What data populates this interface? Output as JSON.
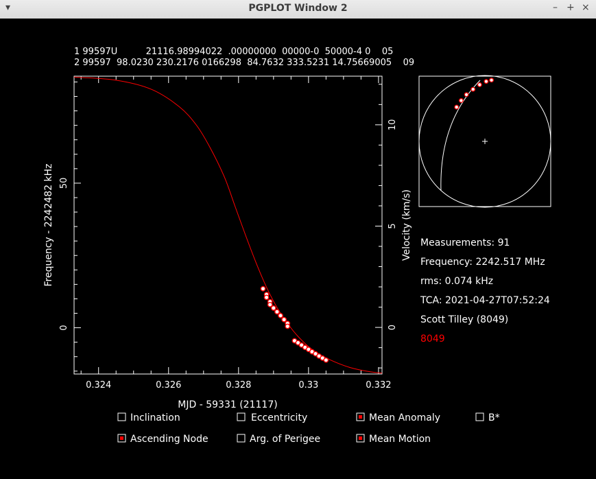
{
  "window": {
    "title": "PGPLOT Window 2",
    "menu_icon": "▾",
    "minimize": "–",
    "maximize": "+",
    "close": "×"
  },
  "tle": {
    "line1": "1 99597U          21116.98994022  .00000000  00000-0  50000-4 0    05",
    "line2": "2 99597  98.0230 230.2176 0166298  84.7632 333.5231 14.75669005    09"
  },
  "info": {
    "measurements": "Measurements: 91",
    "frequency": "Frequency: 2242.517 MHz",
    "rms": "rms: 0.074 kHz",
    "tca": "TCA: 2021-04-27T07:52:24",
    "observer": "Scott Tilley (8049)",
    "site": "8049"
  },
  "checkboxes": [
    {
      "label": "Inclination",
      "checked": false
    },
    {
      "label": "Eccentricity",
      "checked": false
    },
    {
      "label": "Mean Anomaly",
      "checked": true
    },
    {
      "label": "B*",
      "checked": false
    },
    {
      "label": "Ascending Node",
      "checked": true
    },
    {
      "label": "Arg. of Perigee",
      "checked": false
    },
    {
      "label": "Mean Motion",
      "checked": true
    }
  ],
  "colors": {
    "background": "#000000",
    "foreground": "#ffffff",
    "curve": "#ff0000",
    "points_fill": "#ffffff",
    "points_edge": "#ff0000"
  },
  "chart_data": {
    "type": "scatter",
    "xlabel": "MJD - 59331 (21117)",
    "ylabel": "Frequency - 2242482 kHz",
    "y2label": "Velocity (km/s)",
    "xlim": [
      0.3233,
      0.3321
    ],
    "ylim": [
      -16,
      87
    ],
    "y2lim": [
      -2.3,
      12.4
    ],
    "xticks": [
      0.324,
      0.326,
      0.328,
      0.33,
      0.332
    ],
    "xtick_labels": [
      "0.324",
      "0.326",
      "0.328",
      "0.33",
      "0.332"
    ],
    "yticks": [
      0,
      50
    ],
    "ytick_labels": [
      "0",
      "50"
    ],
    "y2ticks": [
      0,
      5,
      10
    ],
    "y2tick_labels": [
      "0",
      "5",
      "10"
    ],
    "model_curve": {
      "name": "fit",
      "points": [
        [
          0.3233,
          86.7
        ],
        [
          0.3245,
          85.6
        ],
        [
          0.3255,
          82.5
        ],
        [
          0.3263,
          76.5
        ],
        [
          0.3268,
          70
        ],
        [
          0.3272,
          62
        ],
        [
          0.3276,
          52
        ],
        [
          0.3279,
          42
        ],
        [
          0.3282,
          32
        ],
        [
          0.3285,
          22.5
        ],
        [
          0.3288,
          14
        ],
        [
          0.3291,
          7
        ],
        [
          0.3294,
          1.5
        ],
        [
          0.3297,
          -3
        ],
        [
          0.3301,
          -7.5
        ],
        [
          0.3306,
          -11
        ],
        [
          0.3312,
          -13.8
        ],
        [
          0.3318,
          -15.3
        ],
        [
          0.3321,
          -15.7
        ]
      ]
    },
    "measurements": {
      "name": "observations",
      "points": [
        [
          0.3287,
          13.5
        ],
        [
          0.3288,
          11.5
        ],
        [
          0.3288,
          10.5
        ],
        [
          0.3289,
          9.0
        ],
        [
          0.3289,
          8.0
        ],
        [
          0.329,
          6.8
        ],
        [
          0.3291,
          5.5
        ],
        [
          0.3292,
          4.2
        ],
        [
          0.3293,
          2.8
        ],
        [
          0.3294,
          1.5
        ],
        [
          0.3294,
          0.5
        ],
        [
          0.3296,
          -4.5
        ],
        [
          0.3297,
          -5.2
        ],
        [
          0.3298,
          -6.0
        ],
        [
          0.3299,
          -6.8
        ],
        [
          0.33,
          -7.5
        ],
        [
          0.3301,
          -8.3
        ],
        [
          0.3302,
          -9.0
        ],
        [
          0.3303,
          -9.8
        ],
        [
          0.3304,
          -10.5
        ],
        [
          0.3305,
          -11.2
        ]
      ]
    }
  },
  "sky_plot": {
    "track": [
      [
        -0.43,
        -0.52
      ],
      [
        -0.36,
        -0.62
      ],
      [
        -0.28,
        -0.71
      ],
      [
        -0.18,
        -0.79
      ],
      [
        -0.08,
        -0.86
      ],
      [
        0.02,
        -0.91
      ],
      [
        0.1,
        -0.93
      ]
    ]
  }
}
